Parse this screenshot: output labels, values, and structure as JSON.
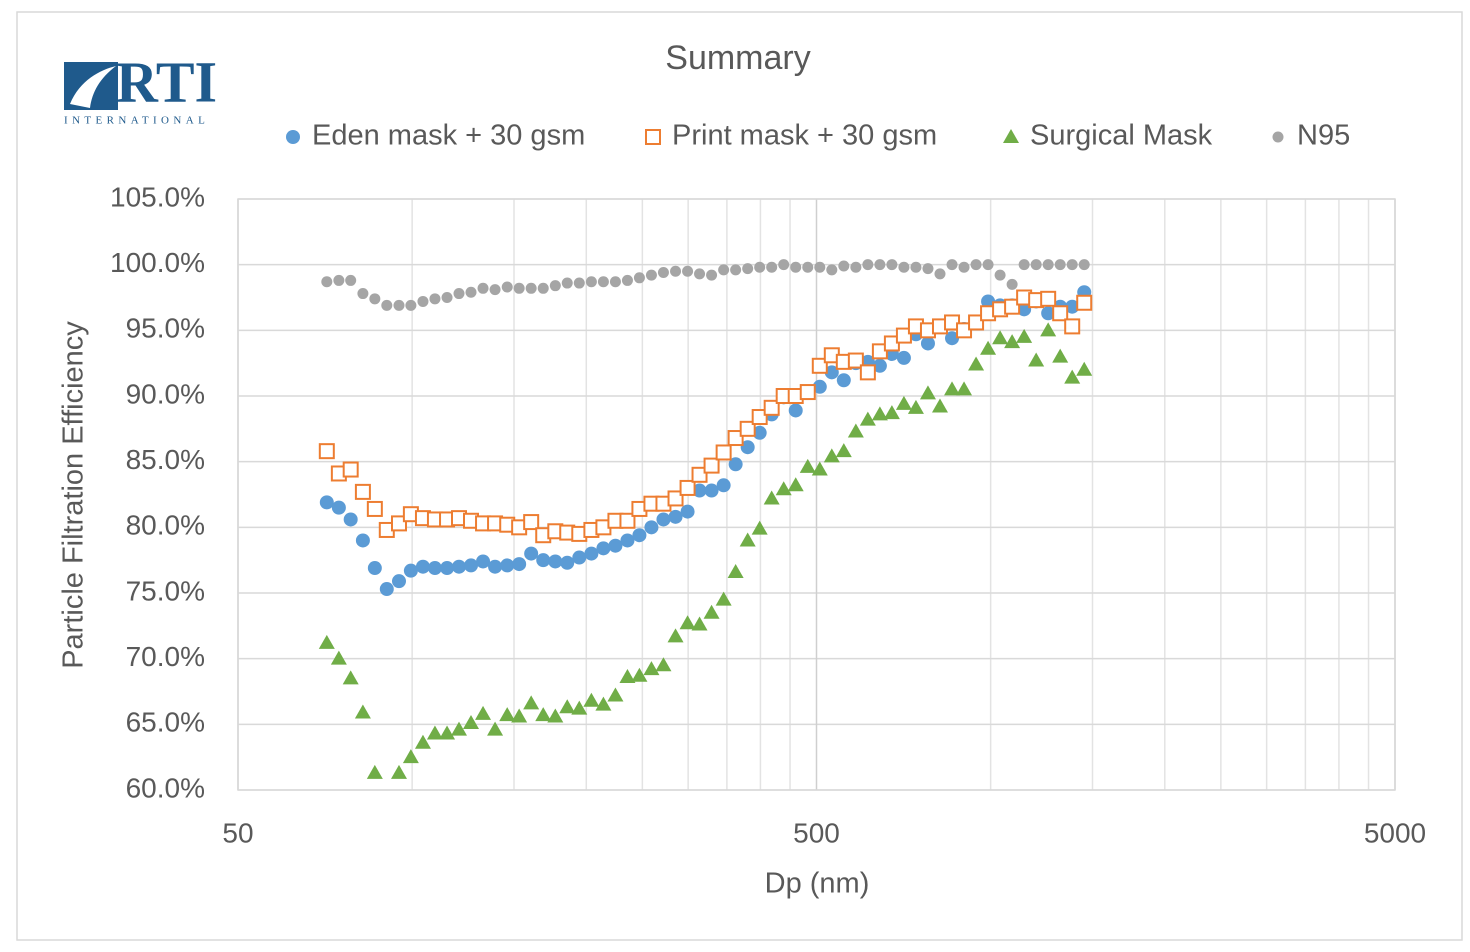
{
  "logo": {
    "name": "RTI",
    "subtitle": "INTERNATIONAL"
  },
  "chart_data": {
    "type": "scatter",
    "title": "Summary",
    "x_label": "Dp (nm)",
    "y_label": "Particle Filtration Efficiency",
    "xscale": "log",
    "xlim": [
      50,
      5000
    ],
    "xticks": [
      50,
      500,
      5000
    ],
    "xminorticks": [
      100,
      150,
      200,
      250,
      300,
      350,
      400,
      450,
      1000,
      1500,
      2000,
      2500,
      3000,
      3500,
      4000,
      4500
    ],
    "ylim": [
      60,
      105
    ],
    "yticks": [
      {
        "value": 60,
        "label": "60.0%"
      },
      {
        "value": 65,
        "label": "65.0%"
      },
      {
        "value": 70,
        "label": "70.0%"
      },
      {
        "value": 75,
        "label": "75.0%"
      },
      {
        "value": 80,
        "label": "80.0%"
      },
      {
        "value": 85,
        "label": "85.0%"
      },
      {
        "value": 90,
        "label": "90.0%"
      },
      {
        "value": 95,
        "label": "95.0%"
      },
      {
        "value": 100,
        "label": "100.0%"
      },
      {
        "value": 105,
        "label": "105.0%"
      }
    ],
    "grid": true,
    "legend": "top",
    "x": [
      71.2,
      74.7,
      78.3,
      82.2,
      86.2,
      90.4,
      94.9,
      99.5,
      104.4,
      109.5,
      114.9,
      120.5,
      126.4,
      132.6,
      139.1,
      146.0,
      153.1,
      160.6,
      168.5,
      176.8,
      185.4,
      194.5,
      204.1,
      214.1,
      224.6,
      235.6,
      247.1,
      259.2,
      271.9,
      285.3,
      299.3,
      313.9,
      329.3,
      345.5,
      362.4,
      380.2,
      398.8,
      418.3,
      438.8,
      460.3,
      482.9,
      506.6,
      531.4,
      557.4,
      584.8,
      613.4,
      643.5,
      675.0,
      708.1,
      742.8,
      779.2,
      817.4,
      857.5,
      899.5,
      943.6,
      989.8,
      1038.3,
      1089.2,
      1142.6,
      1198.6,
      1257.3,
      1318.9,
      1383.5,
      1451.3
    ],
    "series": [
      {
        "name": "Eden mask + 30 gsm",
        "color": "#5b9bd5",
        "marker": "circle",
        "values": [
          81.9,
          81.5,
          80.6,
          79.0,
          76.9,
          75.3,
          75.9,
          76.7,
          77.0,
          76.9,
          76.9,
          77.0,
          77.1,
          77.4,
          77.0,
          77.1,
          77.2,
          78.0,
          77.5,
          77.4,
          77.3,
          77.7,
          78.0,
          78.4,
          78.6,
          79.0,
          79.4,
          80.0,
          80.6,
          80.8,
          81.2,
          82.8,
          82.8,
          83.2,
          84.8,
          86.1,
          87.2,
          88.6,
          89.9,
          88.9,
          90.3,
          90.7,
          91.8,
          91.2,
          92.5,
          92.6,
          92.3,
          93.2,
          92.9,
          94.7,
          94.0,
          95.3,
          94.4,
          95.1,
          95.6,
          97.2,
          96.9,
          96.9,
          96.6,
          97.2,
          96.3,
          96.8,
          96.8,
          97.9
        ]
      },
      {
        "name": "Print mask + 30 gsm",
        "color": "#ed7d31",
        "marker": "square",
        "values": [
          85.8,
          84.1,
          84.4,
          82.7,
          81.4,
          79.8,
          80.3,
          81.0,
          80.7,
          80.6,
          80.6,
          80.7,
          80.5,
          80.3,
          80.3,
          80.2,
          80.0,
          80.4,
          79.4,
          79.7,
          79.6,
          79.5,
          79.8,
          80.0,
          80.5,
          80.5,
          81.4,
          81.8,
          81.8,
          82.2,
          83.0,
          84.0,
          84.7,
          85.7,
          86.8,
          87.5,
          88.4,
          89.1,
          90.0,
          90.0,
          90.3,
          92.3,
          93.1,
          92.6,
          92.7,
          91.8,
          93.4,
          94.0,
          94.6,
          95.3,
          95.0,
          95.3,
          95.6,
          95.0,
          95.6,
          96.3,
          96.6,
          96.8,
          97.5,
          97.3,
          97.4,
          96.3,
          95.3,
          97.1
        ]
      },
      {
        "name": "Surgical Mask",
        "color": "#70ad47",
        "marker": "triangle",
        "values": [
          71.2,
          70.0,
          68.5,
          65.9,
          61.3,
          null,
          61.3,
          62.5,
          63.6,
          64.3,
          64.3,
          64.6,
          65.1,
          65.8,
          64.6,
          65.7,
          65.6,
          66.6,
          65.7,
          65.6,
          66.3,
          66.2,
          66.8,
          66.5,
          67.2,
          68.6,
          68.7,
          69.2,
          69.5,
          71.7,
          72.7,
          72.6,
          73.5,
          74.5,
          76.6,
          79.0,
          79.9,
          82.2,
          82.9,
          83.2,
          84.6,
          84.4,
          85.4,
          85.8,
          87.3,
          88.2,
          88.6,
          88.7,
          89.4,
          89.1,
          90.2,
          89.2,
          90.5,
          90.5,
          92.4,
          93.6,
          94.4,
          94.1,
          94.5,
          92.7,
          95.0,
          93.0,
          91.4,
          92.0
        ]
      },
      {
        "name": "N95",
        "color": "#a5a5a5",
        "marker": "circle-small",
        "values": [
          98.7,
          98.8,
          98.8,
          97.8,
          97.4,
          96.9,
          96.9,
          96.9,
          97.2,
          97.4,
          97.5,
          97.8,
          97.9,
          98.2,
          98.1,
          98.3,
          98.2,
          98.2,
          98.2,
          98.4,
          98.6,
          98.6,
          98.7,
          98.7,
          98.7,
          98.8,
          99.0,
          99.2,
          99.4,
          99.5,
          99.5,
          99.3,
          99.2,
          99.6,
          99.6,
          99.7,
          99.8,
          99.8,
          100.0,
          99.8,
          99.8,
          99.8,
          99.6,
          99.9,
          99.8,
          100.0,
          100.0,
          100.0,
          99.8,
          99.8,
          99.7,
          99.3,
          100.0,
          99.8,
          100.0,
          100.0,
          99.2,
          98.5,
          100.0,
          100.0,
          100.0,
          100.0,
          100.0,
          100.0
        ]
      }
    ]
  }
}
